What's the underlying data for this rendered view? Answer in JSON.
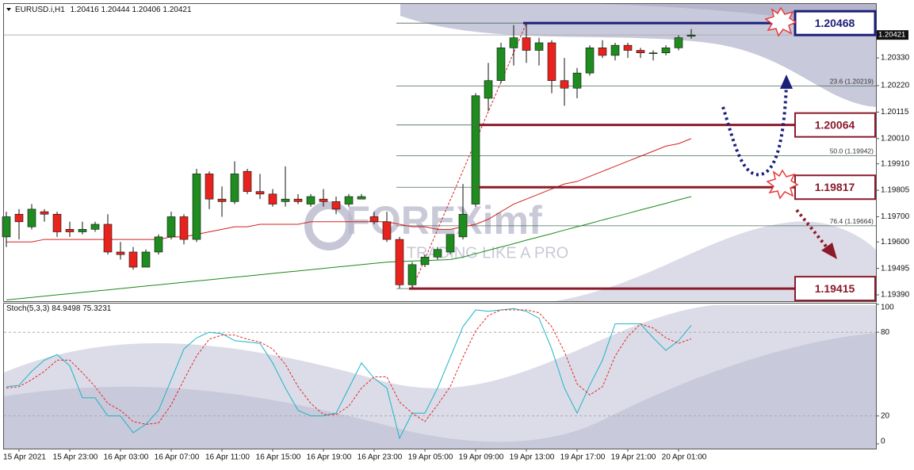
{
  "chart_data": [
    {
      "type": "candlestick",
      "symbol": "EURUSD.i,H1",
      "categories": [
        null,
        "15 Apr 2021",
        null,
        null,
        null,
        "15 Apr 23:00",
        null,
        null,
        null,
        "16 Apr 03:00",
        null,
        null,
        null,
        "16 Apr 07:00",
        null,
        null,
        null,
        "16 Apr 11:00",
        null,
        null,
        null,
        "16 Apr 15:00",
        null,
        null,
        null,
        "16 Apr 19:00",
        null,
        null,
        null,
        "16 Apr 23:00",
        null,
        null,
        null,
        "19 Apr 05:00",
        null,
        null,
        null,
        "19 Apr 09:00",
        null,
        null,
        null,
        "19 Apr 13:00",
        null,
        null,
        null,
        "19 Apr 17:00",
        null,
        null,
        null,
        "19 Apr 21:00",
        null,
        null,
        null,
        "20 Apr 01:00",
        null
      ],
      "open": [
        1.1962,
        1.1971,
        1.1966,
        1.1972,
        1.1971,
        1.1965,
        1.1964,
        1.1965,
        1.1967,
        1.1956,
        1.1956,
        1.195,
        1.1956,
        1.1962,
        1.197,
        1.1961,
        1.1987,
        1.1977,
        1.1976,
        1.1988,
        1.198,
        1.1979,
        1.1976,
        1.1977,
        1.1975,
        1.1977,
        1.1976,
        1.1975,
        1.1977,
        1.197,
        1.1968,
        1.1961,
        1.1943,
        1.1951,
        1.1954,
        1.1956,
        1.1962,
        1.1975,
        1.2017,
        1.2024,
        1.2037,
        1.2041,
        1.2036,
        1.2039,
        1.2024,
        1.2021,
        1.2027,
        1.2037,
        1.2034,
        1.2038,
        1.2036,
        1.2035,
        1.2035,
        1.2037,
        1.20416
      ],
      "high": [
        1.1972,
        1.1973,
        1.1975,
        1.1973,
        1.1972,
        1.1968,
        1.1968,
        1.1968,
        1.1971,
        1.196,
        1.1958,
        1.1957,
        1.1963,
        1.1972,
        1.1971,
        1.1989,
        1.1988,
        1.1982,
        1.1992,
        1.1989,
        1.1987,
        1.1981,
        1.199,
        1.1979,
        1.1979,
        1.1981,
        1.1978,
        1.1979,
        1.1979,
        1.1972,
        1.1972,
        1.1962,
        1.1952,
        1.1955,
        1.1958,
        1.1963,
        1.1983,
        1.2019,
        1.2031,
        1.2039,
        1.2046,
        1.20468,
        1.2041,
        1.204,
        1.2033,
        1.2029,
        1.2038,
        1.204,
        1.2039,
        1.2039,
        1.2037,
        1.2036,
        1.2038,
        1.2042,
        1.20444
      ],
      "low": [
        1.1958,
        1.1961,
        1.1965,
        1.1968,
        1.1962,
        1.1962,
        1.1963,
        1.1964,
        1.1955,
        1.1953,
        1.1949,
        1.195,
        1.1955,
        1.1961,
        1.1959,
        1.196,
        1.1973,
        1.197,
        1.1975,
        1.1979,
        1.1977,
        1.1974,
        1.1974,
        1.1975,
        1.1974,
        1.1974,
        1.1971,
        1.1974,
        1.1977,
        1.1967,
        1.196,
        1.19415,
        1.1942,
        1.195,
        1.1953,
        1.1955,
        1.1961,
        1.1974,
        1.2012,
        1.2023,
        1.203,
        1.2031,
        1.203,
        1.2019,
        1.2014,
        1.2017,
        1.2026,
        1.2033,
        1.2032,
        1.2033,
        1.2033,
        1.2032,
        1.2034,
        1.2036,
        1.20406
      ],
      "close": [
        1.197,
        1.1968,
        1.1973,
        1.1971,
        1.1964,
        1.1964,
        1.1965,
        1.1967,
        1.1956,
        1.1955,
        1.195,
        1.1956,
        1.1962,
        1.197,
        1.1961,
        1.1987,
        1.1977,
        1.1976,
        1.1987,
        1.198,
        1.1979,
        1.1975,
        1.1977,
        1.1976,
        1.1978,
        1.1976,
        1.1973,
        1.1978,
        1.1978,
        1.1968,
        1.1961,
        1.1943,
        1.1951,
        1.1954,
        1.1957,
        1.1963,
        1.1971,
        1.2018,
        1.2024,
        1.2037,
        1.2041,
        1.2036,
        1.2039,
        1.2024,
        1.2021,
        1.2027,
        1.2037,
        1.2034,
        1.2038,
        1.2036,
        1.2035,
        1.2035,
        1.2037,
        1.2041,
        1.20421
      ],
      "up_color": "#1e8c1e",
      "down_color": "#e8231d",
      "lines": [
        {
          "color": "#d42020",
          "values": [
            1.196,
            1.196,
            1.196,
            1.1961,
            1.1961,
            1.1961,
            1.1961,
            1.1961,
            1.1961,
            1.1961,
            1.1961,
            1.1961,
            1.1961,
            1.1962,
            1.1962,
            1.1963,
            1.1964,
            1.1965,
            1.1966,
            1.1966,
            1.1967,
            1.1967,
            1.1967,
            1.1967,
            1.1968,
            1.1968,
            1.1968,
            1.1968,
            1.1968,
            1.1968,
            1.1968,
            1.1967,
            1.1966,
            1.1966,
            1.1965,
            1.1965,
            1.1966,
            1.1967,
            1.1969,
            1.1972,
            1.1975,
            1.1977,
            1.1979,
            1.1981,
            1.1983,
            1.1984,
            1.1986,
            1.1988,
            1.199,
            1.1992,
            1.1994,
            1.1996,
            1.1998,
            1.1999,
            1.2001
          ]
        },
        {
          "color": "#1a8a1a",
          "values": [
            1.1937,
            1.19375,
            1.1938,
            1.19385,
            1.1939,
            1.19395,
            1.194,
            1.19405,
            1.1941,
            1.19415,
            1.1942,
            1.19425,
            1.1943,
            1.19435,
            1.1944,
            1.19445,
            1.1945,
            1.19455,
            1.1946,
            1.19465,
            1.1947,
            1.19475,
            1.1948,
            1.19485,
            1.1949,
            1.19495,
            1.195,
            1.19505,
            1.1951,
            1.19515,
            1.1952,
            1.19522,
            1.19524,
            1.19526,
            1.19528,
            1.1953,
            1.1954,
            1.19553,
            1.19567,
            1.1958,
            1.19593,
            1.19607,
            1.1962,
            1.19633,
            1.19647,
            1.1966,
            1.19673,
            1.19687,
            1.197,
            1.19713,
            1.19727,
            1.1974,
            1.19753,
            1.19767,
            1.1978
          ]
        }
      ],
      "levels": [
        {
          "value": 1.20468,
          "color": "#1b1f7a"
        },
        {
          "value": 1.20064,
          "color": "#8b1a2b"
        },
        {
          "value": 1.19817,
          "color": "#8b1a2b"
        },
        {
          "value": 1.19415,
          "color": "#8b1a2b"
        }
      ],
      "fibonacci": [
        {
          "value": 1.20219,
          "label": "23.6 (1.20219)"
        },
        {
          "value": 1.19942,
          "label": "50.0 (1.19942)"
        },
        {
          "value": 1.19664,
          "label": "76.4 (1.19664)"
        }
      ],
      "watermark": [
        "FOREXimf",
        "TRADING LIKE A PRO"
      ],
      "ylim": [
        1.19365,
        1.20544
      ],
      "yticks": [
        {
          "value": 1.2033,
          "label": "1.20330"
        },
        {
          "value": 1.2022,
          "label": "1.20220"
        },
        1.20115,
        {
          "value": 1.2001,
          "label": "1.20010"
        },
        {
          "value": 1.1991,
          "label": "1.19910"
        },
        1.19805,
        {
          "value": 1.197,
          "label": "1.19700"
        },
        {
          "value": 1.196,
          "label": "1.19600"
        },
        1.19495,
        {
          "value": 1.1939,
          "label": "1.19390"
        }
      ]
    },
    {
      "type": "line",
      "title": "Stoch(5,3,3)",
      "series": [
        {
          "color": "#1fb3c4",
          "dash": false,
          "values": [
            41,
            42,
            52,
            60,
            64,
            56,
            33,
            33,
            20,
            20,
            8,
            14,
            24,
            46,
            68,
            76,
            80,
            79,
            74,
            73,
            72,
            58,
            40,
            24,
            20,
            20,
            22,
            40,
            58,
            47,
            40,
            4,
            22,
            22,
            40,
            62,
            84,
            96,
            95,
            96,
            97,
            95,
            90,
            68,
            40,
            22,
            42,
            60,
            86,
            86,
            86,
            76,
            67,
            74,
            84.9498
          ]
        },
        {
          "color": "#e02828",
          "dash": true,
          "values": [
            40,
            41,
            46,
            52,
            60,
            60,
            51,
            41,
            29,
            24,
            16,
            14,
            15,
            28,
            46,
            63,
            75,
            78,
            78,
            75,
            73,
            68,
            57,
            41,
            29,
            21,
            21,
            27,
            40,
            48,
            48,
            30,
            22,
            16,
            28,
            41,
            62,
            81,
            92,
            96,
            96,
            96,
            94,
            84,
            66,
            43,
            35,
            41,
            63,
            77,
            86,
            83,
            76,
            72,
            75.3231
          ]
        }
      ],
      "levels": [
        80,
        20
      ],
      "ylim": [
        0,
        100
      ],
      "yticks": [
        100,
        80,
        20,
        0
      ]
    }
  ]
}
